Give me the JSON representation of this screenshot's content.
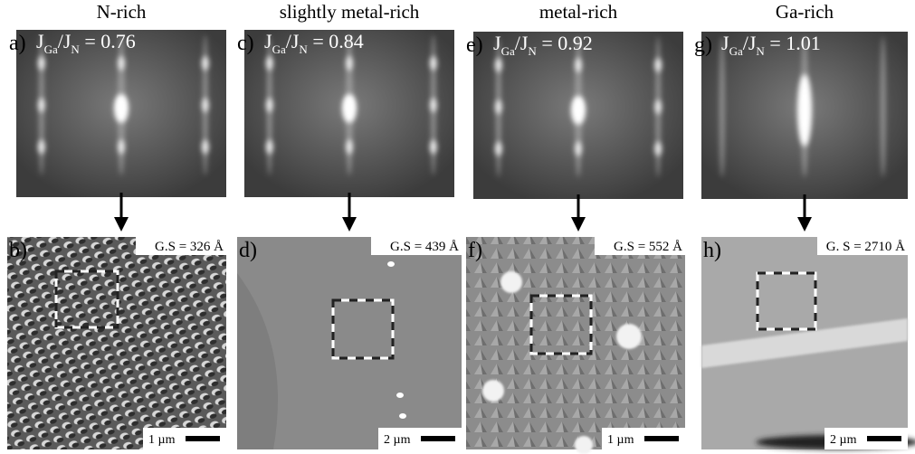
{
  "panels": [
    {
      "title": "N-rich",
      "top_label": "a)",
      "ratio": {
        "j": "J",
        "ga": "Ga",
        "slash": "/J",
        "n": "N",
        "value": " = 0.76"
      },
      "bottom_label": "b)",
      "grain_size": "G.S = 326 Å",
      "scale_bar": "1 µm"
    },
    {
      "title": "slightly metal-rich",
      "top_label": "c)",
      "ratio": {
        "j": "J",
        "ga": "Ga",
        "slash": "/J",
        "n": "N",
        "value": " = 0.84"
      },
      "bottom_label": "d)",
      "grain_size": "G.S = 439 Å",
      "scale_bar": "2 µm"
    },
    {
      "title": "metal-rich",
      "top_label": "e)",
      "ratio": {
        "j": "J",
        "ga": "Ga",
        "slash": "/J",
        "n": "N",
        "value": " = 0.92"
      },
      "bottom_label": "f)",
      "grain_size": "G.S = 552 Å",
      "scale_bar": "1 µm"
    },
    {
      "title": "Ga-rich",
      "top_label": "g)",
      "ratio": {
        "j": "J",
        "ga": "Ga",
        "slash": "/J",
        "n": "N",
        "value": " = 1.01"
      },
      "bottom_label": "h)",
      "grain_size": "G. S = 2710 Å",
      "scale_bar": "2 µm"
    }
  ]
}
